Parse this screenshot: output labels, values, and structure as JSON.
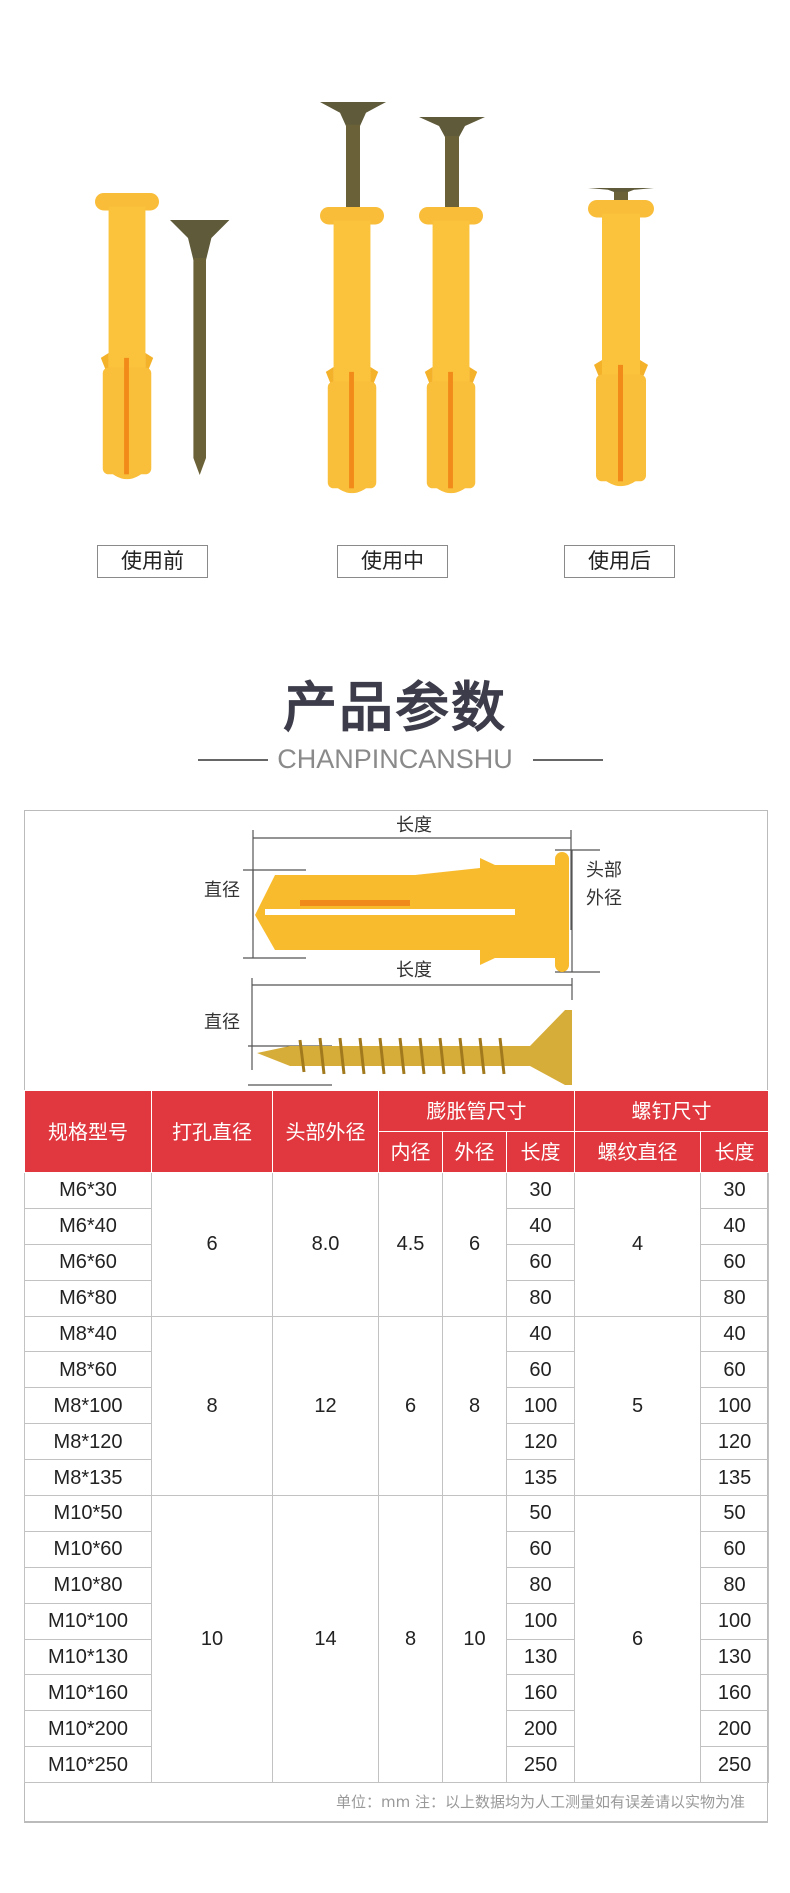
{
  "stages": [
    "使用前",
    "使用中",
    "使用后"
  ],
  "section": {
    "title": "产品参数",
    "subtitle": "CHANPINCANSHU"
  },
  "diagram": {
    "anchor_length": "长度",
    "anchor_diameter": "直径",
    "anchor_head_1": "头部",
    "anchor_head_2": "外径",
    "screw_length": "长度",
    "screw_diameter": "直径"
  },
  "colors": {
    "header_red": "#e0383e",
    "anchor_yellow": "#f9b92c"
  },
  "table": {
    "headers": {
      "model": "规格型号",
      "drill": "打孔直径",
      "head": "头部外径",
      "tube": "膨胀管尺寸",
      "screw": "螺钉尺寸",
      "tube_inner": "内径",
      "tube_outer": "外径",
      "tube_length": "长度",
      "screw_thread": "螺纹直径",
      "screw_length": "长度"
    },
    "groups": [
      {
        "drill": "6",
        "head": "8.0",
        "inner": "4.5",
        "outer": "6",
        "thread": "4",
        "rows": [
          [
            "M6*30",
            "30",
            "30"
          ],
          [
            "M6*40",
            "40",
            "40"
          ],
          [
            "M6*60",
            "60",
            "60"
          ],
          [
            "M6*80",
            "80",
            "80"
          ]
        ]
      },
      {
        "drill": "8",
        "head": "12",
        "inner": "6",
        "outer": "8",
        "thread": "5",
        "rows": [
          [
            "M8*40",
            "40",
            "40"
          ],
          [
            "M8*60",
            "60",
            "60"
          ],
          [
            "M8*100",
            "100",
            "100"
          ],
          [
            "M8*120",
            "120",
            "120"
          ],
          [
            "M8*135",
            "135",
            "135"
          ]
        ]
      },
      {
        "drill": "10",
        "head": "14",
        "inner": "8",
        "outer": "10",
        "thread": "6",
        "rows": [
          [
            "M10*50",
            "50",
            "50"
          ],
          [
            "M10*60",
            "60",
            "60"
          ],
          [
            "M10*80",
            "80",
            "80"
          ],
          [
            "M10*100",
            "100",
            "100"
          ],
          [
            "M10*130",
            "130",
            "130"
          ],
          [
            "M10*160",
            "160",
            "160"
          ],
          [
            "M10*200",
            "200",
            "200"
          ],
          [
            "M10*250",
            "250",
            "250"
          ]
        ]
      }
    ],
    "note": "单位：mm 注：以上数据均为人工测量如有误差请以实物为准"
  }
}
